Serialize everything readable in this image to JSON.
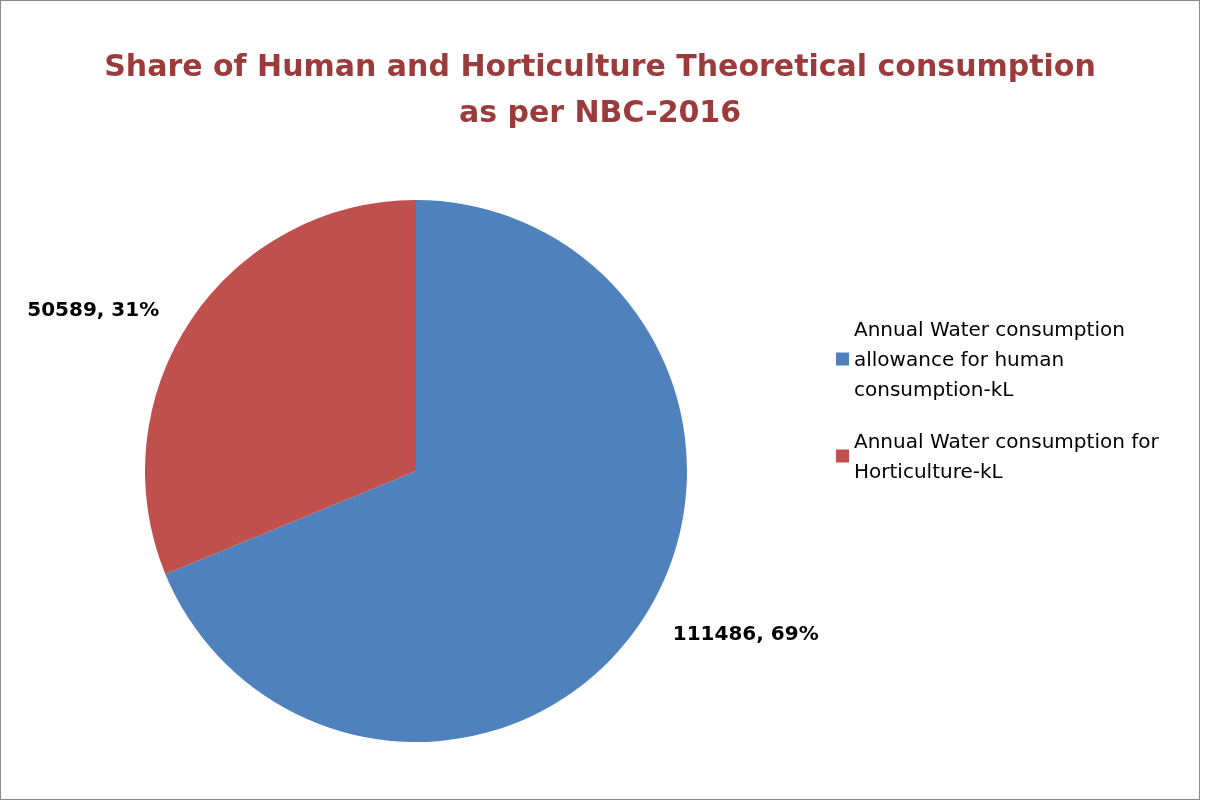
{
  "chart_data": {
    "type": "pie",
    "title": "Share of Human and Horticulture Theoretical consumption\nas per NBC-2016",
    "categories": [
      "Annual Water consumption allowance for human consumption-kL",
      "Annual Water consumption for Horticulture-kL"
    ],
    "values": [
      111486,
      50589
    ],
    "colors": [
      "#4f81bd",
      "#c0504d"
    ],
    "value_labels": [
      "111486, 69%",
      "50589, 31%"
    ],
    "legend": "right"
  }
}
